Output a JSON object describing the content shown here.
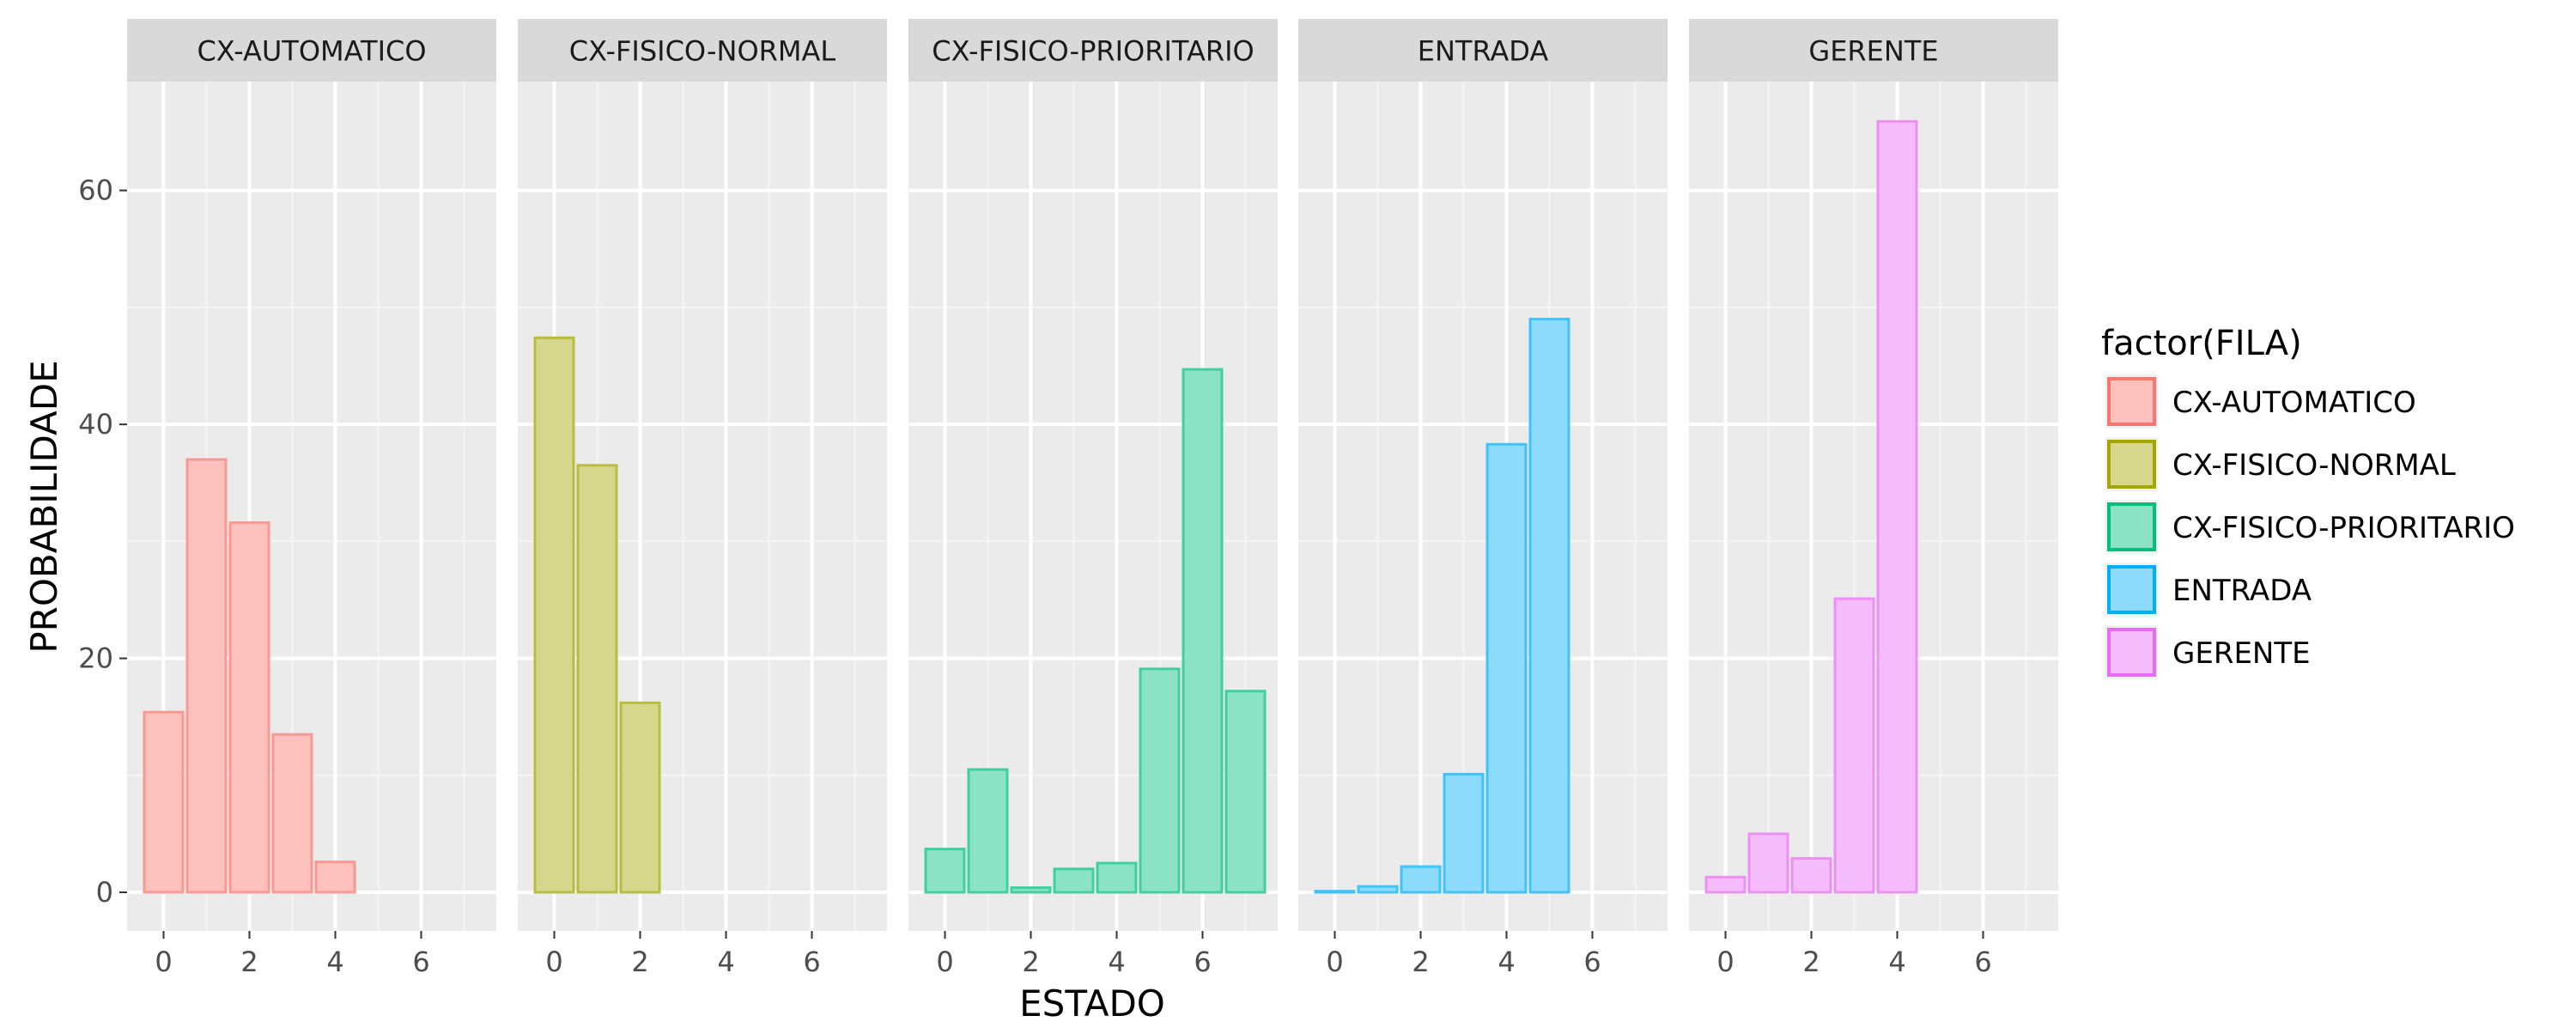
{
  "chart_data": {
    "type": "bar",
    "facet_by": "FILA",
    "xlabel": "ESTADO",
    "ylabel": "PROBABILIDADE",
    "xlim": [
      -0.85,
      7.75
    ],
    "ylim": [
      -3.3,
      69.3
    ],
    "x_ticks": [
      0,
      2,
      4,
      6
    ],
    "y_ticks": [
      0,
      20,
      40,
      60
    ],
    "grid": true,
    "legend_title": "factor(FILA)",
    "legend_position": "right",
    "panels": [
      {
        "name": "CX-AUTOMATICO",
        "fill": "#F8766D",
        "x": [
          0,
          1,
          2,
          3,
          4
        ],
        "values": [
          15.4,
          37.0,
          31.6,
          13.5,
          2.6
        ]
      },
      {
        "name": "CX-FISICO-NORMAL",
        "fill": "#A3A500",
        "x": [
          0,
          1,
          2
        ],
        "values": [
          47.4,
          36.5,
          16.2
        ]
      },
      {
        "name": "CX-FISICO-PRIORITARIO",
        "fill": "#00BF7D",
        "x": [
          0,
          1,
          2,
          3,
          4,
          5,
          6,
          7
        ],
        "values": [
          3.7,
          10.5,
          0.4,
          2.0,
          2.5,
          19.1,
          44.7,
          17.2
        ]
      },
      {
        "name": "ENTRADA",
        "fill": "#00B0F6",
        "x": [
          0,
          1,
          2,
          3,
          4,
          5
        ],
        "values": [
          0.1,
          0.5,
          2.2,
          10.1,
          38.3,
          49.0
        ]
      },
      {
        "name": "GERENTE",
        "fill": "#E76BF3",
        "x": [
          0,
          1,
          2,
          3,
          4
        ],
        "values": [
          1.3,
          5.0,
          2.9,
          25.1,
          65.9
        ]
      }
    ]
  }
}
